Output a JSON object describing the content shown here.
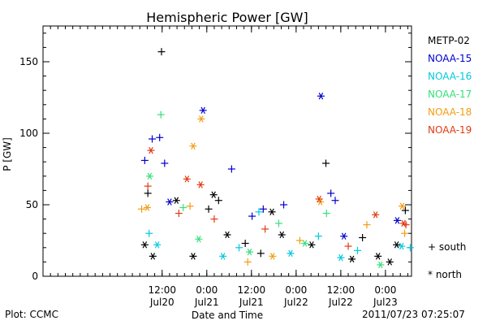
{
  "chart_data": {
    "type": "scatter",
    "title": "Hemispheric Power [GW]",
    "ylabel": "P [GW]",
    "xlabel": "Date and Time",
    "ylim": [
      0,
      175
    ],
    "xlim": [
      "2011-07-19T04:00",
      "2011-07-23T07:00"
    ],
    "yticks": [
      "0",
      "50",
      "100",
      "150"
    ],
    "xticks": [
      {
        "x": "2011-07-20T12:00",
        "time": "12:00",
        "date": "Jul20"
      },
      {
        "x": "2011-07-21T00:00",
        "time": "0:00",
        "date": "Jul21"
      },
      {
        "x": "2011-07-21T12:00",
        "time": "12:00",
        "date": "Jul21"
      },
      {
        "x": "2011-07-22T00:00",
        "time": "0:00",
        "date": "Jul22"
      },
      {
        "x": "2011-07-22T12:00",
        "time": "12:00",
        "date": "Jul22"
      },
      {
        "x": "2011-07-23T00:00",
        "time": "0:00",
        "date": "Jul23"
      }
    ],
    "markers": {
      "south": "+",
      "north": "*"
    },
    "series": [
      {
        "name": "METP-02",
        "color": "#000000",
        "south": [
          [
            "2011-07-20T08:10",
            58
          ],
          [
            "2011-07-20T11:50",
            157
          ],
          [
            "2011-07-21T00:30",
            47
          ],
          [
            "2011-07-21T03:10",
            53
          ],
          [
            "2011-07-21T10:20",
            23
          ],
          [
            "2011-07-21T14:30",
            16
          ],
          [
            "2011-07-22T08:00",
            79
          ],
          [
            "2011-07-22T17:50",
            27
          ],
          [
            "2011-07-23T05:20",
            46
          ]
        ],
        "north": [
          [
            "2011-07-20T07:20",
            22
          ],
          [
            "2011-07-20T09:30",
            14
          ],
          [
            "2011-07-20T15:50",
            53
          ],
          [
            "2011-07-20T20:20",
            14
          ],
          [
            "2011-07-21T01:50",
            57
          ],
          [
            "2011-07-21T05:30",
            29
          ],
          [
            "2011-07-21T17:30",
            45
          ],
          [
            "2011-07-21T20:10",
            29
          ],
          [
            "2011-07-22T04:10",
            22
          ],
          [
            "2011-07-22T15:00",
            12
          ],
          [
            "2011-07-22T22:00",
            14
          ],
          [
            "2011-07-23T01:10",
            10
          ],
          [
            "2011-07-23T03:00",
            22
          ]
        ]
      },
      {
        "name": "NOAA-15",
        "color": "#0000cc",
        "south": [
          [
            "2011-07-20T07:20",
            81
          ],
          [
            "2011-07-20T09:20",
            96
          ],
          [
            "2011-07-20T11:20",
            97
          ],
          [
            "2011-07-20T12:40",
            79
          ],
          [
            "2011-07-21T06:40",
            75
          ],
          [
            "2011-07-21T12:10",
            42
          ],
          [
            "2011-07-21T15:10",
            47
          ],
          [
            "2011-07-21T20:40",
            50
          ],
          [
            "2011-07-22T09:20",
            58
          ],
          [
            "2011-07-22T10:30",
            53
          ]
        ],
        "north": [
          [
            "2011-07-20T14:00",
            52
          ],
          [
            "2011-07-20T23:00",
            116
          ],
          [
            "2011-07-22T06:40",
            126
          ],
          [
            "2011-07-22T12:50",
            28
          ],
          [
            "2011-07-23T03:10",
            39
          ]
        ]
      },
      {
        "name": "NOAA-16",
        "color": "#00c8e0",
        "south": [
          [
            "2011-07-20T08:30",
            30
          ],
          [
            "2011-07-21T08:40",
            20
          ],
          [
            "2011-07-21T14:00",
            45
          ],
          [
            "2011-07-22T06:00",
            28
          ],
          [
            "2011-07-22T16:30",
            18
          ],
          [
            "2011-07-23T06:40",
            20
          ]
        ],
        "north": [
          [
            "2011-07-20T10:40",
            22
          ],
          [
            "2011-07-21T04:20",
            14
          ],
          [
            "2011-07-21T22:30",
            16
          ],
          [
            "2011-07-22T12:00",
            13
          ],
          [
            "2011-07-23T04:20",
            21
          ]
        ]
      },
      {
        "name": "NOAA-17",
        "color": "#33e07a",
        "south": [
          [
            "2011-07-20T11:40",
            113
          ],
          [
            "2011-07-20T17:40",
            48
          ],
          [
            "2011-07-21T19:20",
            37
          ],
          [
            "2011-07-22T08:10",
            44
          ]
        ],
        "north": [
          [
            "2011-07-20T08:40",
            70
          ],
          [
            "2011-07-20T21:50",
            26
          ],
          [
            "2011-07-21T11:30",
            17
          ],
          [
            "2011-07-22T02:20",
            23
          ],
          [
            "2011-07-22T22:40",
            8
          ]
        ]
      },
      {
        "name": "NOAA-18",
        "color": "#f39c12",
        "south": [
          [
            "2011-07-20T06:30",
            47
          ],
          [
            "2011-07-20T19:30",
            49
          ],
          [
            "2011-07-21T11:00",
            10
          ],
          [
            "2011-07-22T01:00",
            25
          ],
          [
            "2011-07-22T19:00",
            36
          ],
          [
            "2011-07-23T05:10",
            30
          ]
        ],
        "north": [
          [
            "2011-07-20T08:00",
            48
          ],
          [
            "2011-07-20T22:30",
            110
          ],
          [
            "2011-07-20T20:20",
            91
          ],
          [
            "2011-07-21T17:40",
            14
          ],
          [
            "2011-07-22T06:30",
            52
          ],
          [
            "2011-07-23T04:30",
            49
          ]
        ]
      },
      {
        "name": "NOAA-19",
        "color": "#e03a14",
        "south": [
          [
            "2011-07-20T08:10",
            63
          ],
          [
            "2011-07-20T16:30",
            44
          ],
          [
            "2011-07-21T02:00",
            40
          ],
          [
            "2011-07-21T15:40",
            33
          ],
          [
            "2011-07-22T14:00",
            21
          ],
          [
            "2011-07-23T05:30",
            36
          ]
        ],
        "north": [
          [
            "2011-07-20T09:00",
            88
          ],
          [
            "2011-07-20T18:40",
            68
          ],
          [
            "2011-07-20T22:20",
            64
          ],
          [
            "2011-07-22T06:10",
            54
          ],
          [
            "2011-07-22T21:20",
            43
          ],
          [
            "2011-07-23T04:50",
            37
          ]
        ]
      }
    ]
  },
  "legend": [
    {
      "label": "METP-02",
      "color": "#000000"
    },
    {
      "label": "NOAA-15",
      "color": "#0000cc"
    },
    {
      "label": "NOAA-16",
      "color": "#00c8e0"
    },
    {
      "label": "NOAA-17",
      "color": "#33e07a"
    },
    {
      "label": "NOAA-18",
      "color": "#f39c12"
    },
    {
      "label": "NOAA-19",
      "color": "#e03a14"
    }
  ],
  "symbol_key": {
    "south": "+ south",
    "north": "* north"
  },
  "footer": {
    "plot_credit": "Plot: CCMC",
    "timestamp": "2011/07/23 07:25:07"
  }
}
